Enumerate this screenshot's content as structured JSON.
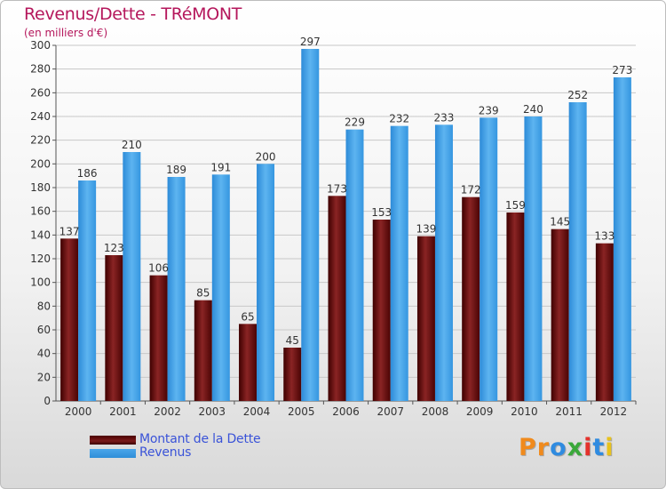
{
  "header": {
    "title": "Revenus/Dette - TRéMONT",
    "subtitle": "(en milliers d'€)"
  },
  "chart_data": {
    "type": "bar",
    "title": "Revenus/Dette - TRéMONT",
    "ylabel": "(en milliers d'€)",
    "ylim": [
      0,
      300
    ],
    "yticks": [
      0,
      20,
      40,
      60,
      80,
      100,
      120,
      140,
      160,
      180,
      200,
      220,
      240,
      260,
      280,
      300
    ],
    "categories": [
      "2000",
      "2001",
      "2002",
      "2003",
      "2004",
      "2005",
      "2006",
      "2007",
      "2008",
      "2009",
      "2010",
      "2011",
      "2012"
    ],
    "series": [
      {
        "name": "Montant de la Dette",
        "color": "#6e0f0f",
        "values": [
          137,
          123,
          106,
          85,
          65,
          45,
          173,
          153,
          139,
          172,
          159,
          145,
          133
        ]
      },
      {
        "name": "Revenus",
        "color": "#3b9de6",
        "values": [
          186,
          210,
          189,
          191,
          200,
          297,
          229,
          232,
          233,
          239,
          240,
          252,
          273
        ]
      }
    ],
    "grid": true,
    "legend_position": "bottom-left"
  },
  "logo": {
    "text": "Proxiti"
  }
}
